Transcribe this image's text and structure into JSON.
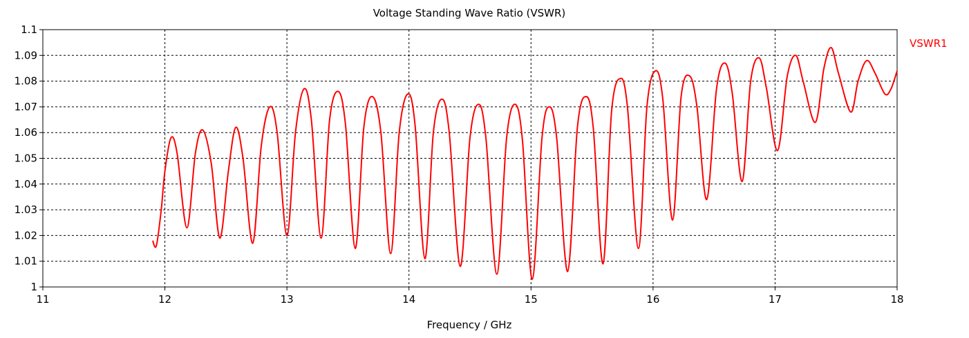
{
  "chart_data": {
    "type": "line",
    "title": "Voltage Standing Wave Ratio (VSWR)",
    "xlabel": "Frequency / GHz",
    "ylabel": "",
    "xlim": [
      11,
      18
    ],
    "ylim": [
      1,
      1.1
    ],
    "x_ticks": [
      "11",
      "12",
      "13",
      "14",
      "15",
      "16",
      "17",
      "18"
    ],
    "y_ticks": [
      "1",
      "1.01",
      "1.02",
      "1.03",
      "1.04",
      "1.05",
      "1.06",
      "1.07",
      "1.08",
      "1.09",
      "1.1"
    ],
    "grid": true,
    "legend_position": "top-right",
    "series": [
      {
        "name": "VSWR1",
        "color": "#ff0000",
        "points": [
          [
            11.9,
            1.018
          ],
          [
            11.93,
            1.016
          ],
          [
            11.97,
            1.03
          ],
          [
            12.0,
            1.045
          ],
          [
            12.05,
            1.058
          ],
          [
            12.1,
            1.052
          ],
          [
            12.18,
            1.023
          ],
          [
            12.25,
            1.052
          ],
          [
            12.31,
            1.061
          ],
          [
            12.38,
            1.048
          ],
          [
            12.45,
            1.019
          ],
          [
            12.52,
            1.045
          ],
          [
            12.58,
            1.062
          ],
          [
            12.64,
            1.05
          ],
          [
            12.72,
            1.017
          ],
          [
            12.79,
            1.055
          ],
          [
            12.86,
            1.07
          ],
          [
            12.92,
            1.06
          ],
          [
            13.0,
            1.02
          ],
          [
            13.07,
            1.06
          ],
          [
            13.14,
            1.077
          ],
          [
            13.2,
            1.065
          ],
          [
            13.28,
            1.019
          ],
          [
            13.35,
            1.065
          ],
          [
            13.42,
            1.076
          ],
          [
            13.48,
            1.063
          ],
          [
            13.56,
            1.015
          ],
          [
            13.63,
            1.062
          ],
          [
            13.7,
            1.074
          ],
          [
            13.77,
            1.06
          ],
          [
            13.85,
            1.013
          ],
          [
            13.92,
            1.06
          ],
          [
            13.99,
            1.075
          ],
          [
            14.05,
            1.063
          ],
          [
            14.13,
            1.011
          ],
          [
            14.2,
            1.06
          ],
          [
            14.27,
            1.073
          ],
          [
            14.33,
            1.06
          ],
          [
            14.42,
            1.008
          ],
          [
            14.5,
            1.058
          ],
          [
            14.57,
            1.071
          ],
          [
            14.63,
            1.058
          ],
          [
            14.72,
            1.005
          ],
          [
            14.8,
            1.058
          ],
          [
            14.87,
            1.071
          ],
          [
            14.93,
            1.057
          ],
          [
            15.01,
            1.003
          ],
          [
            15.09,
            1.058
          ],
          [
            15.15,
            1.07
          ],
          [
            15.21,
            1.058
          ],
          [
            15.3,
            1.006
          ],
          [
            15.38,
            1.062
          ],
          [
            15.45,
            1.074
          ],
          [
            15.51,
            1.062
          ],
          [
            15.59,
            1.009
          ],
          [
            15.66,
            1.068
          ],
          [
            15.73,
            1.081
          ],
          [
            15.79,
            1.07
          ],
          [
            15.88,
            1.015
          ],
          [
            15.95,
            1.07
          ],
          [
            16.02,
            1.084
          ],
          [
            16.08,
            1.073
          ],
          [
            16.16,
            1.026
          ],
          [
            16.23,
            1.074
          ],
          [
            16.3,
            1.082
          ],
          [
            16.36,
            1.07
          ],
          [
            16.44,
            1.034
          ],
          [
            16.52,
            1.077
          ],
          [
            16.59,
            1.087
          ],
          [
            16.65,
            1.075
          ],
          [
            16.73,
            1.041
          ],
          [
            16.8,
            1.08
          ],
          [
            16.87,
            1.089
          ],
          [
            16.93,
            1.077
          ],
          [
            17.02,
            1.053
          ],
          [
            17.1,
            1.082
          ],
          [
            17.17,
            1.09
          ],
          [
            17.23,
            1.08
          ],
          [
            17.33,
            1.064
          ],
          [
            17.4,
            1.085
          ],
          [
            17.46,
            1.093
          ],
          [
            17.52,
            1.083
          ],
          [
            17.62,
            1.068
          ],
          [
            17.68,
            1.08
          ],
          [
            17.75,
            1.088
          ],
          [
            17.82,
            1.083
          ],
          [
            17.9,
            1.075
          ],
          [
            17.95,
            1.077
          ],
          [
            18.0,
            1.084
          ]
        ]
      }
    ]
  }
}
